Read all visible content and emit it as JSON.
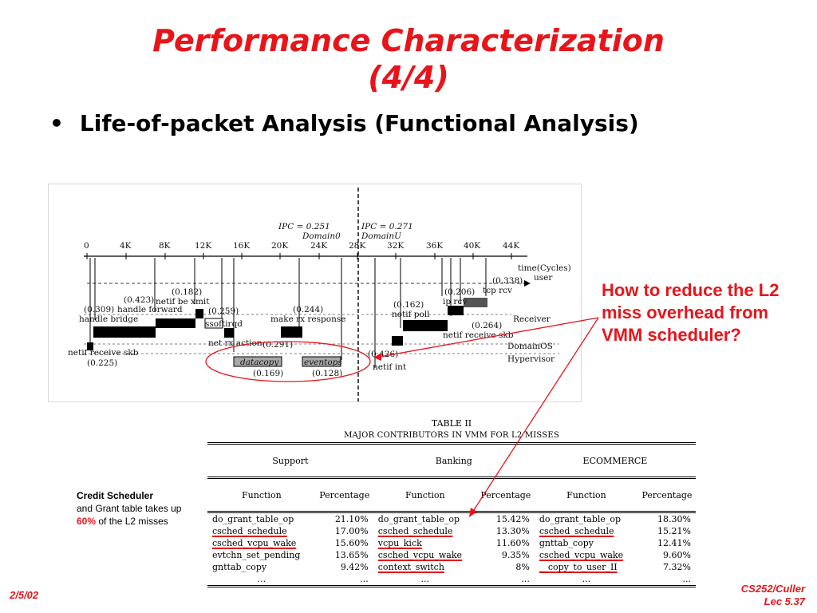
{
  "slide": {
    "title_line1": "Performance Characterization",
    "title_line2": "(4/4)",
    "bullet_mark": "•",
    "bullet": "Life-of-packet Analysis (Functional Analysis)"
  },
  "diagram": {
    "axis_ticks": [
      "0",
      "4K",
      "8K",
      "12K",
      "16K",
      "20K",
      "24K",
      "28K",
      "32K",
      "36K",
      "40K",
      "44K"
    ],
    "ipc_left": "IPC = 0.251",
    "domain_left": "Domain0",
    "ipc_right": "IPC = 0.271",
    "domain_right": "DomainU",
    "time_label": "time(Cycles)",
    "user_label": "user",
    "receiver_label": "Receiver",
    "domainos_label": "DomainOS",
    "hypervisor_label": "Hypervisor",
    "labels": {
      "netif_receive_skb": "netif receive skb",
      "v0225": "(0.225)",
      "v0309": "(0.309)",
      "handle_bridge": "handle bridge",
      "v0423": "(0.423)",
      "handle_forward": "handle forward",
      "v0182": "(0.182)",
      "netif_be_xmit": "netif be xmit",
      "v0259": "(0.259)",
      "ssoftirqd": "ssoftirqd",
      "net_rx_action": "net rx action",
      "v0291": "(0.291)",
      "v0244": "(0.244)",
      "make_rx_response": "make rx response",
      "datacopy": "datacopy",
      "v0169": "(0.169)",
      "eventops": "eventops",
      "v0128": "(0.128)",
      "v0162": "(0.162)",
      "netif_poll": "netif poll",
      "v0206": "(0.206)",
      "ip_rcv": "ip rcv",
      "v0338": "(0.338)",
      "tcp_rcv": "tcp rcv",
      "v0264": "(0.264)",
      "netif_receive_skb2": "netif receive skb",
      "v0426": "(0.426)",
      "netif_int": "netif int"
    }
  },
  "question": "How to reduce the L2 miss overhead from VMM scheduler?",
  "credit_note": {
    "bold": "Credit Scheduler",
    "text1": "and Grant table takes up",
    "highlight": "60%",
    "text2": "of the L2 misses"
  },
  "table": {
    "caption": "TABLE II",
    "subcaption": "MAJOR CONTRIBUTORS IN VMM FOR L2 MISSES",
    "groups": [
      "Support",
      "Banking",
      "ECOMMERCE"
    ],
    "headers": [
      "Function",
      "Percentage",
      "Function",
      "Percentage",
      "Function",
      "Percentage"
    ],
    "rows": [
      [
        "do_grant_table_op",
        "21.10%",
        "do_grant_table_op",
        "15.42%",
        "do_grant_table_op",
        "18.30%"
      ],
      [
        "csched_schedule",
        "17.00%",
        "csched_schedule",
        "13.30%",
        "csched_schedule",
        "15.21%"
      ],
      [
        "csched_vcpu_wake",
        "15.60%",
        "vcpu_kick",
        "11.60%",
        "gnttab_copy",
        "12.41%"
      ],
      [
        "evtchn_set_pending",
        "13.65%",
        "csched_vcpu_wake",
        "9.35%",
        "csched_vcpu_wake",
        "9.60%"
      ],
      [
        "gnttab_copy",
        "9.42%",
        "context_switch",
        "8%",
        "__copy_to_user_II",
        "7.32%"
      ],
      [
        "...",
        "...",
        "...",
        "...",
        "...",
        "..."
      ]
    ]
  },
  "footer": {
    "date": "2/5/02",
    "course": "CS252/Culler",
    "lecture": "Lec 5.37"
  },
  "colors": {
    "accent": "#e8141a"
  }
}
